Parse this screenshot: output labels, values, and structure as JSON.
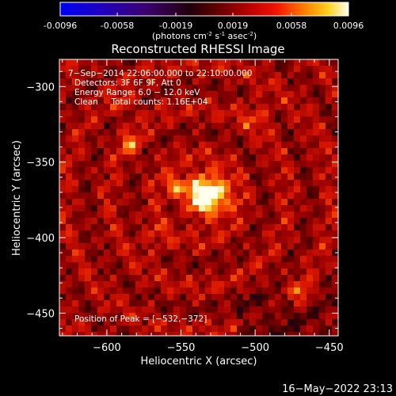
{
  "colorbar": {
    "ticks": [
      "-0.0096",
      "-0.0058",
      "-0.0019",
      "0.0019",
      "0.0058",
      "0.0096"
    ],
    "unit_parts": [
      "(photons cm",
      "-2",
      " s",
      "-1",
      " asec",
      "-2",
      ")"
    ],
    "range": [
      -0.0096,
      0.0096
    ]
  },
  "chart_data": {
    "type": "heatmap",
    "title": "Reconstructed RHESSI Image",
    "xlabel": "Heliocentric X (arcsec)",
    "ylabel": "Heliocentric Y (arcsec)",
    "xlim": [
      -632,
      -444
    ],
    "ylim": [
      -465,
      -282
    ],
    "x_ticks": [
      {
        "value": -600,
        "label": "−600"
      },
      {
        "value": -550,
        "label": "−550"
      },
      {
        "value": -500,
        "label": "−500"
      },
      {
        "value": -450,
        "label": "−450"
      }
    ],
    "y_ticks": [
      {
        "value": -300,
        "label": "−300"
      },
      {
        "value": -350,
        "label": "−350"
      },
      {
        "value": -400,
        "label": "−400"
      },
      {
        "value": -450,
        "label": "−450"
      }
    ],
    "peak": {
      "x": -532,
      "y": -372
    },
    "annotations": [
      "7−Sep−2014 22:06:00.000 to 22:10:00.000",
      "Detectors: 3F 6F 9F, Att 0",
      "Energy Range: 6.0 − 12.0 keV",
      "Clean     Total counts: 1.16E+04"
    ],
    "peak_label": "Position of Peak = [−532,−372]"
  },
  "timestamp": "16−May−2022 23:13"
}
